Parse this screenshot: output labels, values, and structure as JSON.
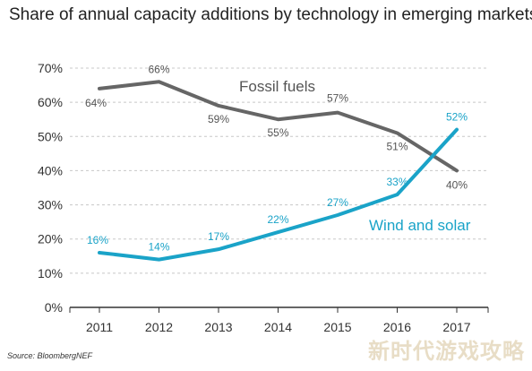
{
  "title": "Share of annual capacity additions by technology in emerging markets",
  "source": "Source: BloombergNEF",
  "watermark": "新时代游戏攻略",
  "colors": {
    "fossil": "#666666",
    "wind": "#1aa3c8",
    "grid": "#c8c8c8",
    "axis": "#333333"
  },
  "chart_data": {
    "type": "line",
    "x": [
      "2011",
      "2012",
      "2013",
      "2014",
      "2015",
      "2016",
      "2017"
    ],
    "series": [
      {
        "name": "Fossil fuels",
        "values": [
          64,
          66,
          59,
          55,
          57,
          51,
          40
        ],
        "labels": [
          "64%",
          "66%",
          "59%",
          "55%",
          "57%",
          "51%",
          "40%"
        ]
      },
      {
        "name": "Wind and solar",
        "values": [
          16,
          14,
          17,
          22,
          27,
          33,
          52
        ],
        "labels": [
          "16%",
          "14%",
          "17%",
          "22%",
          "27%",
          "33%",
          "52%"
        ]
      }
    ],
    "ylim": [
      0,
      70
    ],
    "yticks": [
      "0%",
      "10%",
      "20%",
      "30%",
      "40%",
      "50%",
      "60%",
      "70%"
    ],
    "grid": true,
    "xlabel": "",
    "ylabel": ""
  }
}
